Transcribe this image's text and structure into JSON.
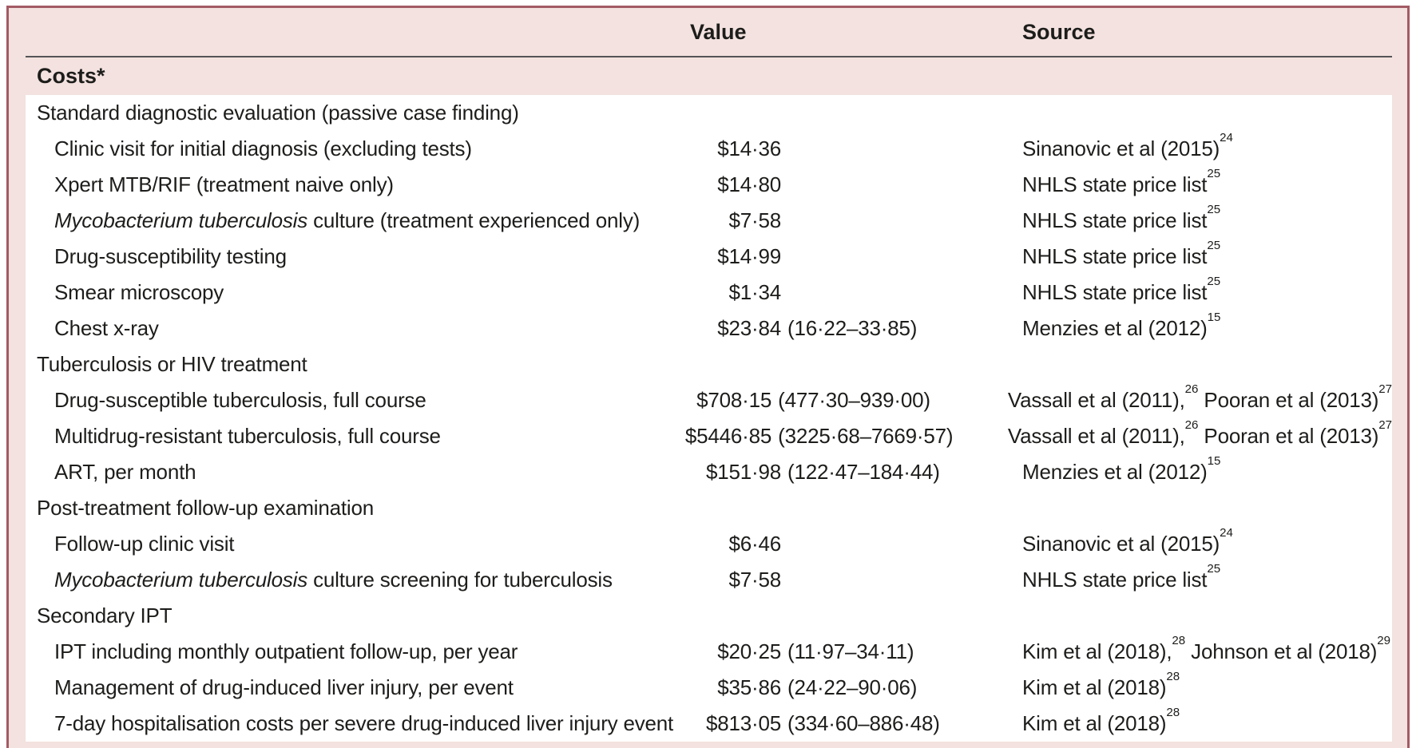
{
  "table": {
    "columns": {
      "value": "Value",
      "source": "Source"
    },
    "section_title": "Costs*",
    "colors": {
      "card_border": "#a35b64",
      "pink_background": "#f3e2df",
      "header_rule": "#545456",
      "text": "#1d1d1b"
    },
    "rows": [
      {
        "type": "section",
        "label_italic": "",
        "label": "Standard diagnostic evaluation (passive case finding)",
        "amount": "",
        "range": "",
        "source": []
      },
      {
        "type": "item",
        "label_italic": "",
        "label": "Clinic visit for initial diagnosis (excluding tests)",
        "amount": "$14·36",
        "range": "",
        "source": [
          {
            "text": "Sinanovic et al (2015)",
            "sup": "24"
          }
        ]
      },
      {
        "type": "item",
        "label_italic": "",
        "label": "Xpert MTB/RIF (treatment naive only)",
        "amount": "$14·80",
        "range": "",
        "source": [
          {
            "text": "NHLS state price list",
            "sup": "25"
          }
        ]
      },
      {
        "type": "item",
        "label_italic": "Mycobacterium tuberculosis",
        "label": " culture (treatment experienced only)",
        "amount": "$7·58",
        "range": "",
        "source": [
          {
            "text": "NHLS state price list",
            "sup": "25"
          }
        ]
      },
      {
        "type": "item",
        "label_italic": "",
        "label": "Drug-susceptibility testing",
        "amount": "$14·99",
        "range": "",
        "source": [
          {
            "text": "NHLS state price list",
            "sup": "25"
          }
        ]
      },
      {
        "type": "item",
        "label_italic": "",
        "label": "Smear microscopy",
        "amount": "$1·34",
        "range": "",
        "source": [
          {
            "text": "NHLS state price list",
            "sup": "25"
          }
        ]
      },
      {
        "type": "item",
        "label_italic": "",
        "label": "Chest x-ray",
        "amount": "$23·84",
        "range": "(16·22–33·85)",
        "source": [
          {
            "text": "Menzies et al (2012)",
            "sup": "15"
          }
        ]
      },
      {
        "type": "section",
        "label_italic": "",
        "label": "Tuberculosis or HIV treatment",
        "amount": "",
        "range": "",
        "source": []
      },
      {
        "type": "item",
        "label_italic": "",
        "label": "Drug-susceptible tuberculosis, full course",
        "amount": "$708·15",
        "range": "(477·30–939·00)",
        "source": [
          {
            "text": "Vassall et al (2011),",
            "sup": "26"
          },
          {
            "text": " Pooran et al (2013)",
            "sup": "27"
          }
        ]
      },
      {
        "type": "item",
        "label_italic": "",
        "label": "Multidrug-resistant tuberculosis, full course",
        "amount": "$5446·85",
        "range": "(3225·68–7669·57)",
        "source": [
          {
            "text": "Vassall et al (2011),",
            "sup": "26"
          },
          {
            "text": " Pooran et al (2013)",
            "sup": "27"
          }
        ]
      },
      {
        "type": "item",
        "label_italic": "",
        "label": "ART, per month",
        "amount": "$151·98",
        "range": "(122·47–184·44)",
        "source": [
          {
            "text": "Menzies et al (2012)",
            "sup": "15"
          }
        ]
      },
      {
        "type": "section",
        "label_italic": "",
        "label": "Post-treatment follow-up examination",
        "amount": "",
        "range": "",
        "source": []
      },
      {
        "type": "item",
        "label_italic": "",
        "label": "Follow-up clinic visit",
        "amount": "$6·46",
        "range": "",
        "source": [
          {
            "text": "Sinanovic et al (2015)",
            "sup": "24"
          }
        ]
      },
      {
        "type": "item",
        "label_italic": "Mycobacterium tuberculosis",
        "label": " culture screening for tuberculosis",
        "amount": "$7·58",
        "range": "",
        "source": [
          {
            "text": "NHLS state price list",
            "sup": "25"
          }
        ]
      },
      {
        "type": "section",
        "label_italic": "",
        "label": "Secondary IPT",
        "amount": "",
        "range": "",
        "source": []
      },
      {
        "type": "item",
        "label_italic": "",
        "label": "IPT including monthly outpatient follow-up, per year",
        "amount": "$20·25",
        "range": "(11·97–34·11)",
        "source": [
          {
            "text": "Kim et al (2018),",
            "sup": "28"
          },
          {
            "text": " Johnson et al (2018)",
            "sup": "29"
          }
        ]
      },
      {
        "type": "item",
        "label_italic": "",
        "label": "Management of drug-induced liver injury, per event",
        "amount": "$35·86",
        "range": "(24·22–90·06)",
        "source": [
          {
            "text": "Kim et al (2018)",
            "sup": "28"
          }
        ]
      },
      {
        "type": "item",
        "label_italic": "",
        "label": "7-day hospitalisation costs per severe drug-induced liver injury event",
        "amount": "$813·05",
        "range": "(334·60–886·48)",
        "source": [
          {
            "text": "Kim et al (2018)",
            "sup": "28"
          }
        ]
      }
    ]
  }
}
